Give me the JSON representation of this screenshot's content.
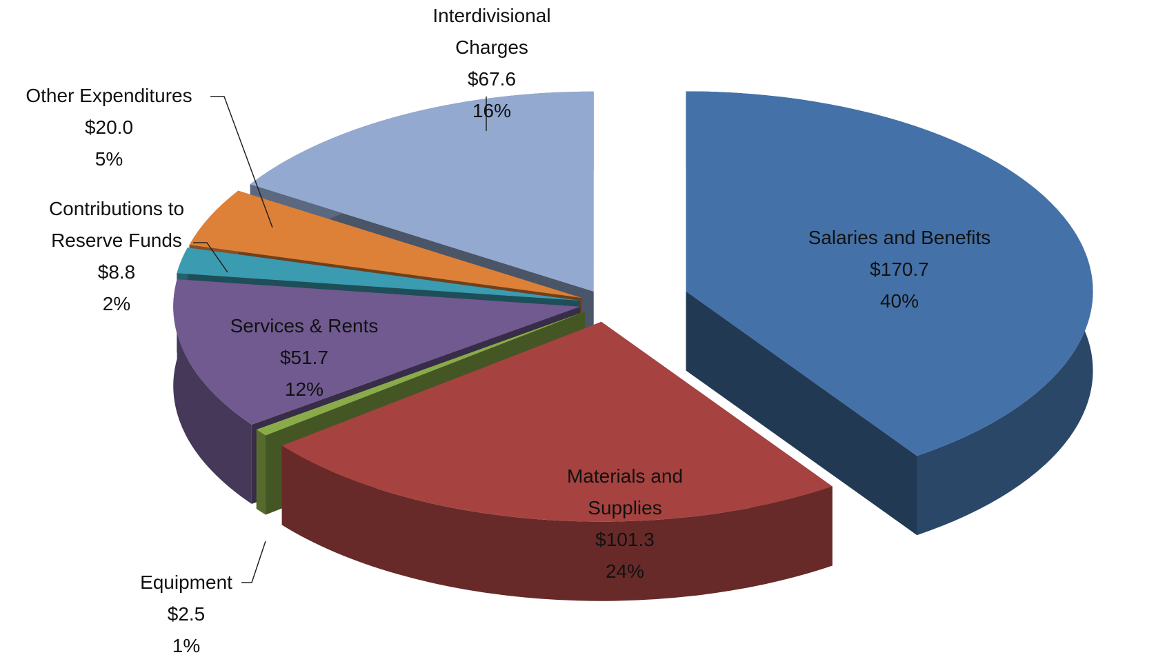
{
  "chart_data": {
    "type": "pie",
    "categories": [
      "Salaries and Benefits",
      "Materials and Supplies",
      "Equipment",
      "Services & Rents",
      "Contributions to Reserve Funds",
      "Other Expenditures",
      "Interdivisional Charges"
    ],
    "values": [
      170.7,
      101.3,
      2.5,
      51.7,
      8.8,
      20.0,
      67.6
    ],
    "value_labels": [
      "$170.7",
      "$101.3",
      "$2.5",
      "$51.7",
      "$8.8",
      "$20.0",
      "$67.6"
    ],
    "percents": [
      40,
      24,
      1,
      12,
      2,
      5,
      16
    ],
    "percent_labels": [
      "40%",
      "24%",
      "1%",
      "12%",
      "2%",
      "5%",
      "16%"
    ],
    "colors": [
      "#4472a8",
      "#a64340",
      "#8aab4a",
      "#705a8f",
      "#3b9bb0",
      "#dd8038",
      "#93a9cf"
    ]
  }
}
